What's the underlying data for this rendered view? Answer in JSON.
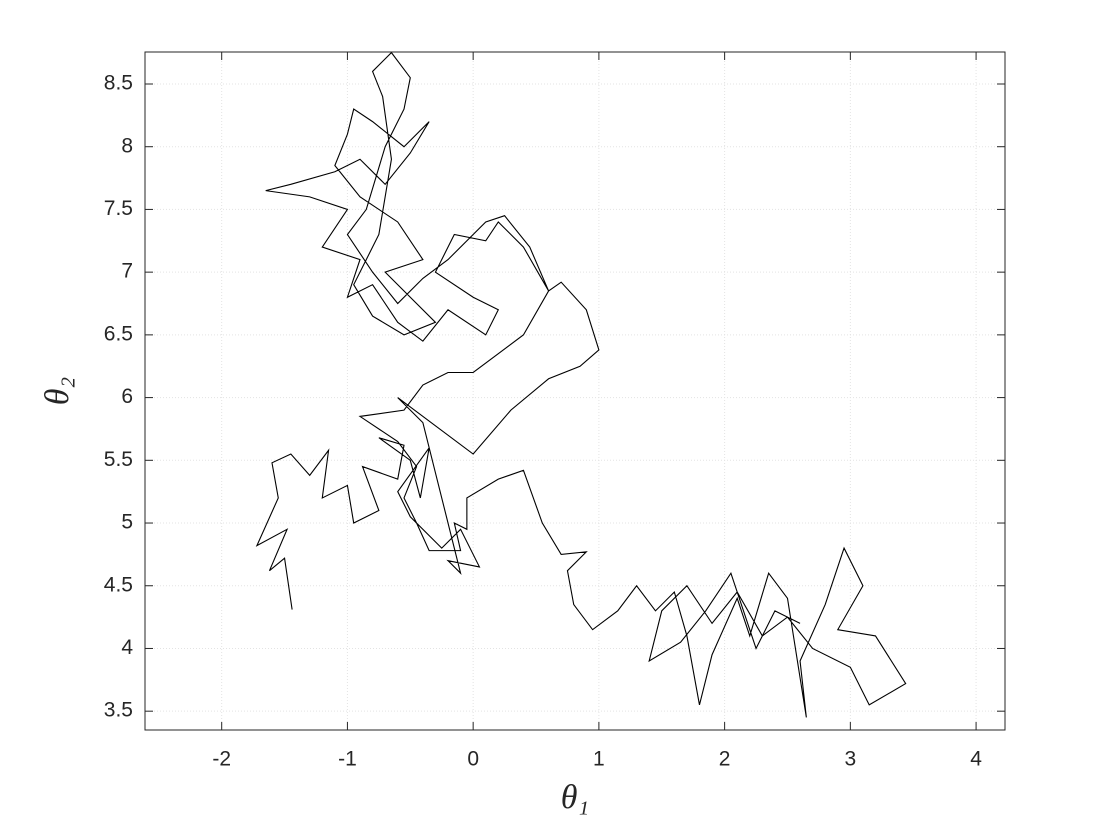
{
  "chart_data": {
    "type": "line",
    "xlabel": "θ₁",
    "ylabel": "θ₂",
    "xlim": [
      -2.61,
      4.23
    ],
    "ylim": [
      3.35,
      8.755
    ],
    "xticks": [
      -2,
      -1,
      0,
      1,
      2,
      3,
      4
    ],
    "yticks": [
      3.5,
      4,
      4.5,
      5,
      5.5,
      6,
      6.5,
      7,
      7.5,
      8,
      8.5
    ],
    "grid": true,
    "series": [
      {
        "color": "#000000",
        "x": [
          -1.44,
          -1.5,
          -1.62,
          -1.48,
          -1.72,
          -1.55,
          -1.6,
          -1.45,
          -1.3,
          -1.15,
          -1.2,
          -1.0,
          -0.95,
          -0.75,
          -0.88,
          -0.6,
          -0.55,
          -0.75,
          -0.5,
          -0.42,
          -0.35,
          -0.6,
          -0.5,
          -0.25,
          -0.1,
          0.05,
          -0.2,
          -0.1,
          -0.4,
          -0.6,
          0.0,
          0.3,
          0.6,
          0.85,
          1.0,
          0.9,
          0.7,
          0.6,
          0.4,
          0.2,
          0.1,
          -0.15,
          -0.3,
          0.0,
          0.2,
          0.1,
          -0.2,
          -0.4,
          -0.6,
          -0.8,
          -1.0,
          -0.9,
          -1.2,
          -1.0,
          -1.3,
          -1.65,
          -1.45,
          -1.1,
          -0.9,
          -0.7,
          -0.5,
          -0.35,
          -0.55,
          -0.8,
          -0.95,
          -1.0,
          -1.1,
          -0.9,
          -0.6,
          -0.4,
          -0.7,
          -0.5,
          -0.3,
          -0.55,
          -0.8,
          -0.95,
          -0.75,
          -0.65,
          -0.72,
          -0.8,
          -0.65,
          -0.5,
          -0.55,
          -0.7,
          -0.85,
          -1.0,
          -0.8,
          -0.6,
          -0.4,
          -0.2,
          0.1,
          0.25,
          0.45,
          0.6,
          0.4,
          0.2,
          0.0,
          -0.2,
          -0.4,
          -0.55,
          -0.9,
          -0.6,
          -0.45,
          -0.55,
          -0.45,
          -0.35,
          -0.1,
          -0.15,
          -0.05,
          -0.05,
          0.2,
          0.4,
          0.55,
          0.7,
          0.9,
          0.75,
          0.8,
          0.95,
          1.15,
          1.3,
          1.45,
          1.6,
          1.7,
          1.8,
          1.9,
          2.1,
          2.2,
          2.35,
          2.5,
          2.65,
          2.6,
          2.8,
          2.95,
          3.1,
          2.9,
          3.2,
          3.44,
          3.15,
          3.0,
          2.7,
          2.5,
          2.3,
          2.1,
          1.9,
          1.7,
          1.5,
          1.4,
          1.65,
          1.85,
          2.05,
          2.25,
          2.4,
          2.6
        ],
        "values": [
          4.31,
          4.72,
          4.62,
          4.95,
          4.82,
          5.2,
          5.48,
          5.55,
          5.38,
          5.58,
          5.2,
          5.3,
          5.0,
          5.1,
          5.45,
          5.35,
          5.62,
          5.68,
          5.5,
          5.2,
          5.6,
          5.25,
          5.05,
          4.8,
          4.95,
          4.65,
          4.7,
          4.6,
          5.8,
          6.0,
          5.55,
          5.9,
          6.15,
          6.25,
          6.38,
          6.7,
          6.92,
          6.85,
          7.2,
          7.4,
          7.25,
          7.3,
          7.0,
          6.8,
          6.7,
          6.5,
          6.7,
          6.45,
          6.6,
          6.9,
          6.8,
          7.1,
          7.2,
          7.5,
          7.6,
          7.65,
          7.7,
          7.8,
          7.9,
          7.7,
          7.95,
          8.2,
          8.0,
          8.2,
          8.3,
          8.1,
          7.85,
          7.6,
          7.4,
          7.1,
          7.0,
          6.8,
          6.6,
          6.5,
          6.65,
          6.9,
          7.3,
          7.9,
          8.4,
          8.6,
          8.75,
          8.55,
          8.3,
          8.0,
          7.5,
          7.3,
          7.0,
          6.75,
          6.95,
          7.1,
          7.4,
          7.45,
          7.2,
          6.85,
          6.5,
          6.35,
          6.2,
          6.2,
          6.1,
          5.9,
          5.85,
          5.65,
          5.45,
          5.2,
          5.0,
          4.78,
          4.78,
          5.0,
          4.95,
          5.2,
          5.35,
          5.42,
          5.0,
          4.75,
          4.77,
          4.62,
          4.35,
          4.15,
          4.3,
          4.5,
          4.3,
          4.45,
          4.1,
          3.55,
          3.95,
          4.4,
          4.1,
          4.6,
          4.4,
          3.45,
          3.9,
          4.35,
          4.8,
          4.5,
          4.15,
          4.1,
          3.72,
          3.55,
          3.85,
          4.0,
          4.25,
          4.1,
          4.45,
          4.2,
          4.5,
          4.3,
          3.9,
          4.05,
          4.3,
          4.6,
          4.0,
          4.3,
          4.2
        ]
      }
    ]
  }
}
